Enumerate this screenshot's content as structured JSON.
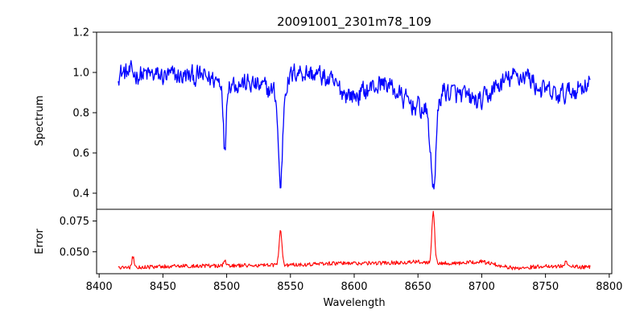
{
  "chart_data": [
    {
      "type": "line",
      "panel": "top",
      "title": "20091001_2301m78_109",
      "xlabel": "",
      "ylabel": "Spectrum",
      "xlim": [
        8398,
        8802
      ],
      "ylim": [
        0.32,
        1.2
      ],
      "xticks": [
        8400,
        8450,
        8500,
        8550,
        8600,
        8650,
        8700,
        8750,
        8800
      ],
      "yticks": [
        0.4,
        0.6,
        0.8,
        1.0,
        1.2
      ],
      "ytick_labels": [
        "0.4",
        "0.6",
        "0.8",
        "1.0",
        "1.2"
      ],
      "grid": false,
      "series": [
        {
          "name": "Spectrum",
          "color": "#0000ff",
          "x_start": 8415,
          "x_end": 8785,
          "baseline": [
            [
              8415,
              1.0
            ],
            [
              8450,
              0.98
            ],
            [
              8480,
              0.98
            ],
            [
              8495,
              0.96
            ],
            [
              8520,
              0.94
            ],
            [
              8540,
              0.9
            ],
            [
              8555,
              1.01
            ],
            [
              8575,
              0.98
            ],
            [
              8590,
              0.91
            ],
            [
              8600,
              0.88
            ],
            [
              8615,
              0.93
            ],
            [
              8625,
              0.95
            ],
            [
              8640,
              0.86
            ],
            [
              8655,
              0.81
            ],
            [
              8670,
              0.91
            ],
            [
              8685,
              0.88
            ],
            [
              8700,
              0.85
            ],
            [
              8710,
              0.92
            ],
            [
              8722,
              0.97
            ],
            [
              8735,
              0.99
            ],
            [
              8745,
              0.92
            ],
            [
              8760,
              0.88
            ],
            [
              8775,
              0.92
            ],
            [
              8785,
              0.96
            ]
          ],
          "absorption_lines": [
            {
              "center": 8498.5,
              "depth": 0.36,
              "width": 1.0
            },
            {
              "center": 8542.2,
              "depth": 0.48,
              "width": 1.6
            },
            {
              "center": 8662.0,
              "depth": 0.42,
              "width": 2.2
            }
          ],
          "noise_amplitude": 0.045
        }
      ]
    },
    {
      "type": "line",
      "panel": "bottom",
      "title": "",
      "xlabel": "Wavelength",
      "ylabel": "Error",
      "xlim": [
        8398,
        8802
      ],
      "ylim": [
        0.0322,
        0.0845
      ],
      "xticks": [
        8400,
        8450,
        8500,
        8550,
        8600,
        8650,
        8700,
        8750,
        8800
      ],
      "xtick_labels": [
        "8400",
        "8450",
        "8500",
        "8550",
        "8600",
        "8650",
        "8700",
        "8750",
        "8800"
      ],
      "yticks": [
        0.05,
        0.075
      ],
      "ytick_labels": [
        "0.050",
        "0.075"
      ],
      "grid": false,
      "series": [
        {
          "name": "Error",
          "color": "#ff0000",
          "x_start": 8415,
          "x_end": 8785,
          "baseline": [
            [
              8415,
              0.037
            ],
            [
              8470,
              0.0385
            ],
            [
              8540,
              0.039
            ],
            [
              8580,
              0.0405
            ],
            [
              8620,
              0.0408
            ],
            [
              8650,
              0.0418
            ],
            [
              8680,
              0.0405
            ],
            [
              8700,
              0.042
            ],
            [
              8725,
              0.0365
            ],
            [
              8750,
              0.0385
            ],
            [
              8785,
              0.0375
            ]
          ],
          "peaks": [
            {
              "center": 8426.5,
              "height": 0.009,
              "width": 0.8
            },
            {
              "center": 8542.2,
              "height": 0.029,
              "width": 1.1
            },
            {
              "center": 8662.0,
              "height": 0.042,
              "width": 1.1
            },
            {
              "center": 8498.5,
              "height": 0.004,
              "width": 0.8
            },
            {
              "center": 8766.0,
              "height": 0.0055,
              "width": 0.8
            }
          ],
          "noise_amplitude": 0.0016
        }
      ]
    }
  ]
}
